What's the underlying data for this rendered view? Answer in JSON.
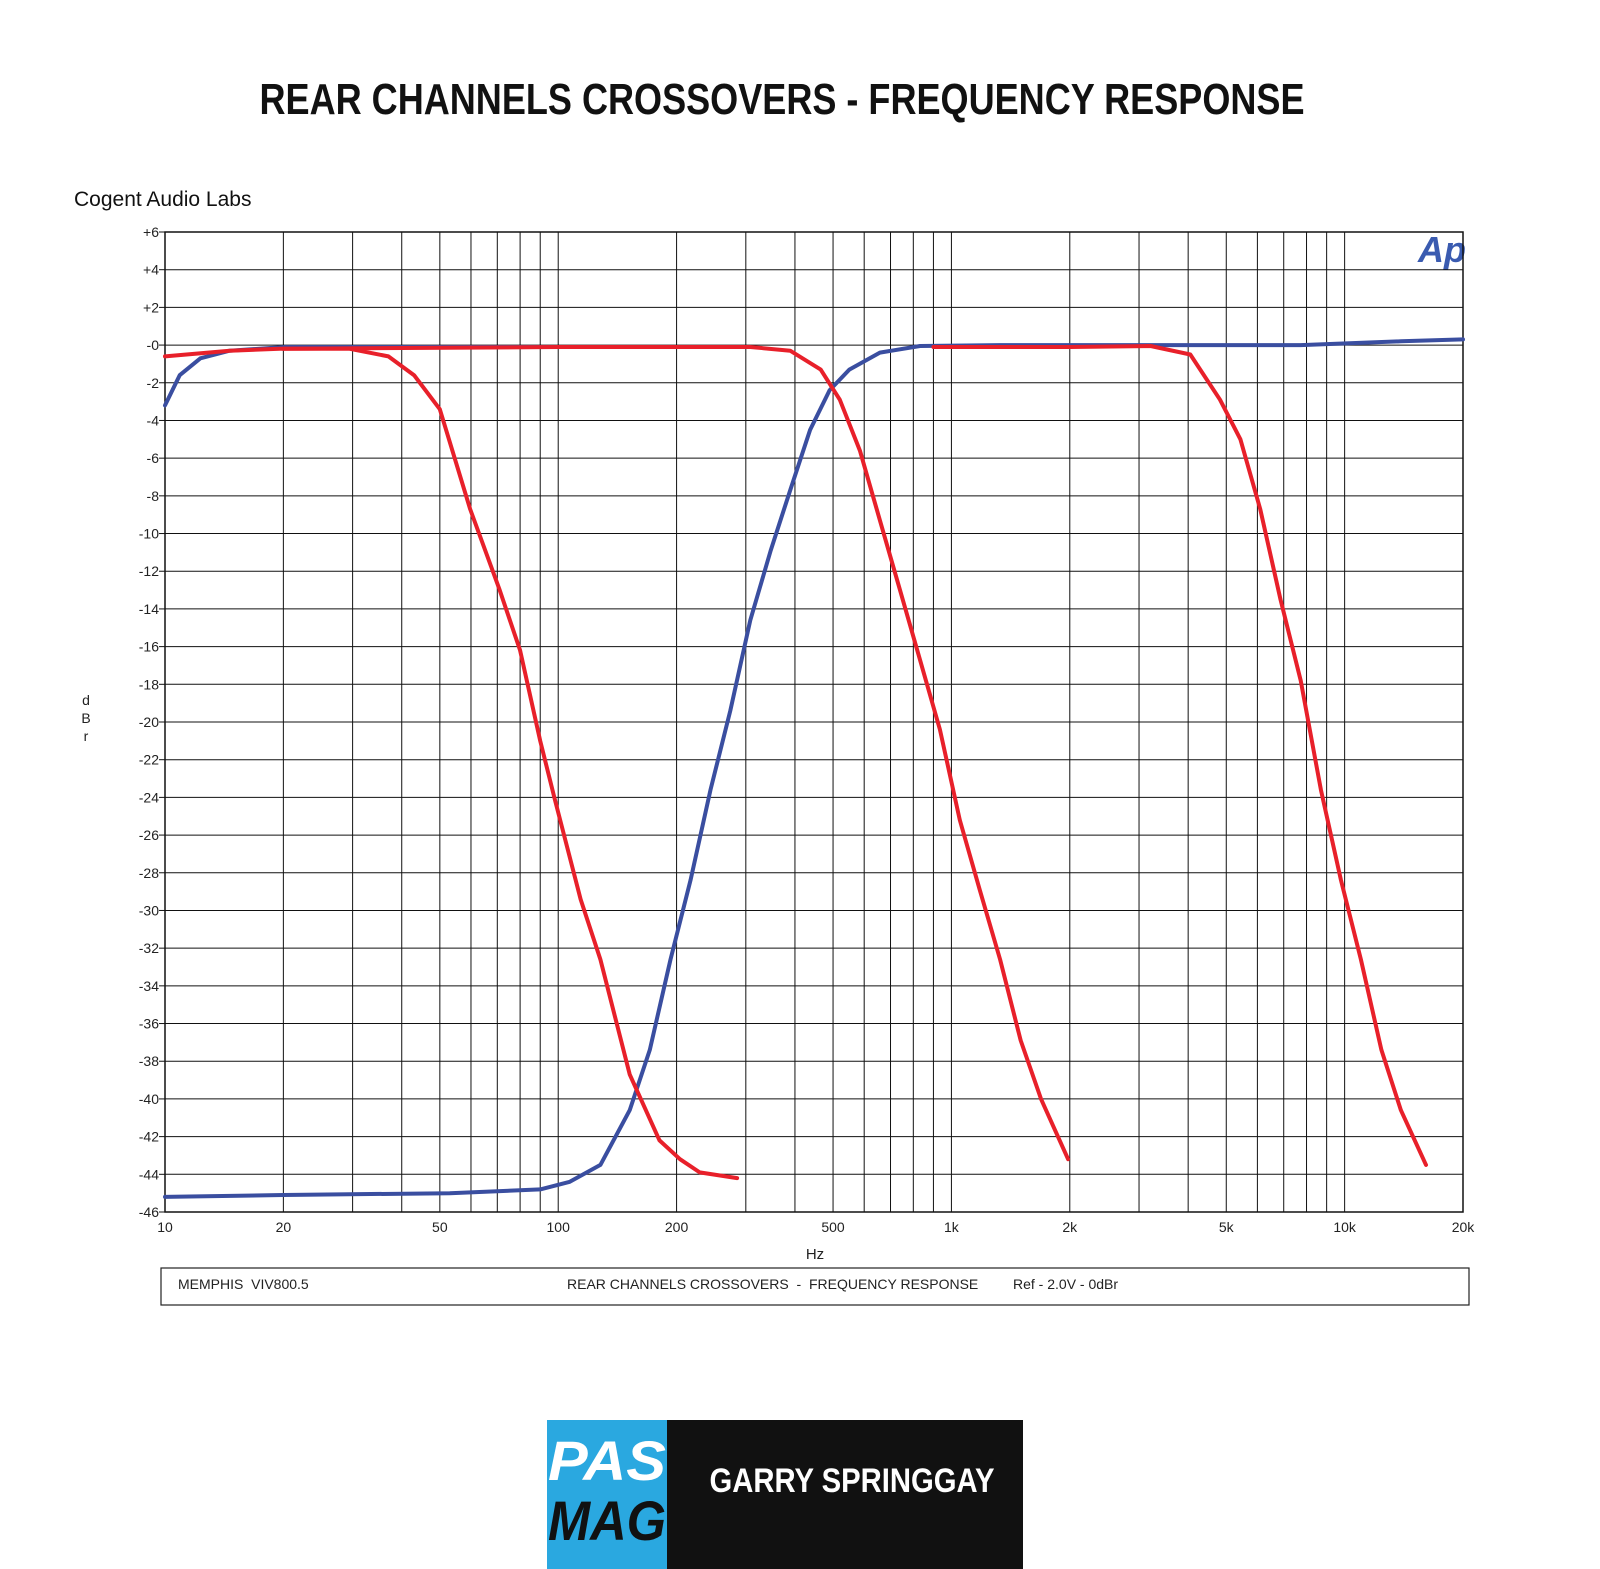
{
  "header": {
    "title": "REAR CHANNELS CROSSOVERS - FREQUENCY RESPONSE"
  },
  "chart_data": {
    "type": "line",
    "source": "Cogent Audio Labs",
    "logo": "Ap",
    "xlabel": "Hz",
    "ylabel": "dBr",
    "xscale": "log",
    "grid": true,
    "xlim": [
      10,
      20000
    ],
    "ylim": [
      -46,
      6
    ],
    "xticks": [
      10,
      20,
      50,
      100,
      200,
      500,
      {
        "value": 1000,
        "label": "1k"
      },
      {
        "value": 2000,
        "label": "2k"
      },
      {
        "value": 5000,
        "label": "5k"
      },
      {
        "value": 10000,
        "label": "10k"
      },
      {
        "value": 20000,
        "label": "20k"
      }
    ],
    "xminor": [
      30,
      40,
      60,
      70,
      80,
      90,
      300,
      400,
      600,
      700,
      800,
      900,
      3000,
      4000,
      6000,
      7000,
      8000,
      9000
    ],
    "yticks": [
      {
        "value": 6,
        "label": "+6"
      },
      {
        "value": 4,
        "label": "+4"
      },
      {
        "value": 2,
        "label": "+2"
      },
      {
        "value": 0,
        "label": "-0"
      },
      -2,
      -4,
      -6,
      -8,
      -10,
      -12,
      -14,
      -16,
      -18,
      -20,
      -22,
      -24,
      -26,
      -28,
      -30,
      -32,
      -34,
      -36,
      -38,
      -40,
      -42,
      -44,
      -46
    ],
    "series": [
      {
        "color": "#3a4ea0",
        "x": [
          10,
          10.9,
          12.3,
          14.6,
          20.2,
          50,
          100,
          300
        ],
        "values": [
          -3.2,
          -1.6,
          -0.7,
          -0.3,
          -0.1,
          -0.1,
          -0.1,
          -0.1
        ]
      },
      {
        "color": "#3a4ea0",
        "x": [
          10,
          20,
          53,
          90,
          107,
          128,
          152,
          171,
          193,
          217,
          244,
          274,
          308,
          347,
          389,
          437,
          490,
          550,
          658,
          832,
          1330,
          7730,
          13900,
          20000
        ],
        "values": [
          -45.2,
          -45.1,
          -45,
          -44.8,
          -44.4,
          -43.5,
          -40.6,
          -37.4,
          -32.6,
          -28.4,
          -23.6,
          -19.4,
          -14.6,
          -10.9,
          -7.7,
          -4.5,
          -2.4,
          -1.3,
          -0.4,
          -0.05,
          0,
          0,
          0.2,
          0.3
        ]
      },
      {
        "color": "#e8202a",
        "x": [
          10,
          14.6,
          19.6,
          29.5,
          37,
          43,
          50,
          59.7,
          71,
          80,
          90,
          98,
          114,
          128,
          152,
          181,
          204,
          229,
          285
        ],
        "values": [
          -0.6,
          -0.3,
          -0.2,
          -0.2,
          -0.6,
          -1.6,
          -3.4,
          -8.7,
          -13,
          -16.2,
          -21,
          -24.1,
          -29.4,
          -32.6,
          -38.7,
          -42.2,
          -43.2,
          -43.9,
          -44.2
        ]
      },
      {
        "color": "#e8202a",
        "x": [
          20,
          100,
          200,
          308,
          389,
          465,
          520,
          585,
          658,
          740,
          832,
          935,
          1050,
          1180,
          1330,
          1500,
          1690,
          1980
        ],
        "values": [
          -0.2,
          -0.1,
          -0.1,
          -0.1,
          -0.3,
          -1.3,
          -2.9,
          -5.6,
          -9.3,
          -13,
          -16.7,
          -20.4,
          -25.2,
          -28.9,
          -32.6,
          -36.9,
          -40,
          -43.2
        ]
      },
      {
        "color": "#e8202a",
        "x": [
          900,
          2000,
          3210,
          4050,
          4820,
          5430,
          6100,
          6870,
          7730,
          8700,
          9790,
          11000,
          12400,
          13900,
          16100
        ],
        "values": [
          -0.1,
          -0.1,
          -0.05,
          -0.5,
          -2.9,
          -5,
          -8.7,
          -13.5,
          -17.8,
          -23.6,
          -28.4,
          -32.6,
          -37.4,
          -40.6,
          -43.5
        ]
      }
    ],
    "footer": {
      "device": "MEMPHIS  VIV800.5",
      "test": "REAR CHANNELS CROSSOVERS  -  FREQUENCY RESPONSE",
      "reference": "Ref - 2.0V - 0dBr"
    }
  },
  "branding": {
    "logo_top": "PAS",
    "logo_bottom": "MAG",
    "author": "GARRY SPRINGGAY"
  }
}
